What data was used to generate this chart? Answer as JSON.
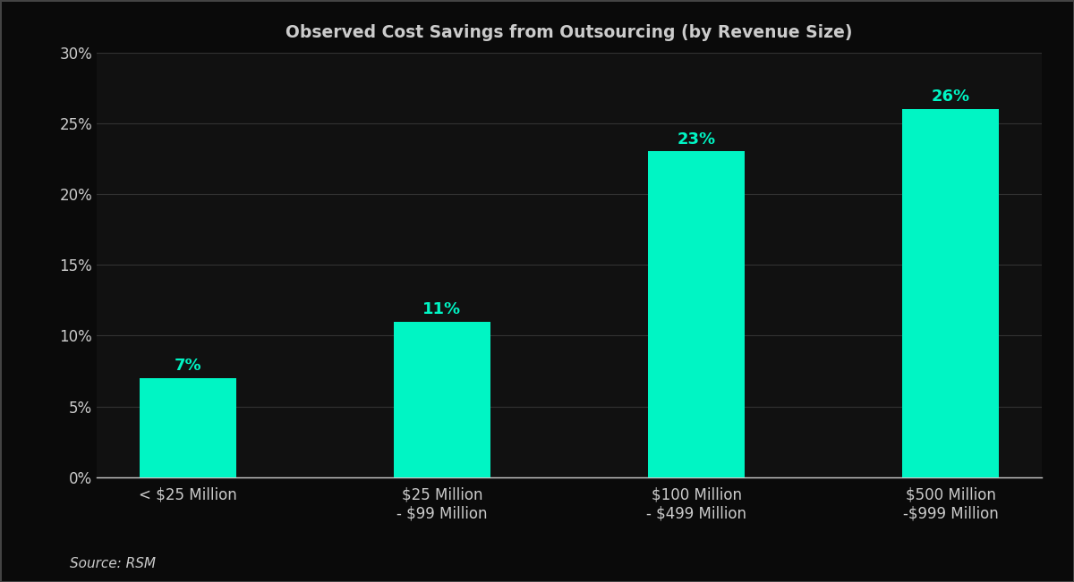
{
  "title": "Observed Cost Savings from Outsourcing (by Revenue Size)",
  "categories": [
    "< $25 Million",
    "$25 Million\n- $99 Million",
    "$100 Million\n- $499 Million",
    "$500 Million\n-$999 Million"
  ],
  "values": [
    7,
    11,
    23,
    26
  ],
  "bar_color": "#00F5C4",
  "bar_width": 0.38,
  "ylim": [
    0,
    30
  ],
  "yticks": [
    0,
    5,
    10,
    15,
    20,
    25,
    30
  ],
  "title_fontsize": 13.5,
  "label_fontsize": 13,
  "tick_fontsize": 12,
  "source_text": "Source: RSM",
  "background_color": "#111111",
  "plot_bg_color": "#111111",
  "text_color": "#cccccc",
  "grid_color": "#333333",
  "annotation_color": "#00F5C4",
  "border_color": "#444444",
  "figure_bg": "#0a0a0a"
}
